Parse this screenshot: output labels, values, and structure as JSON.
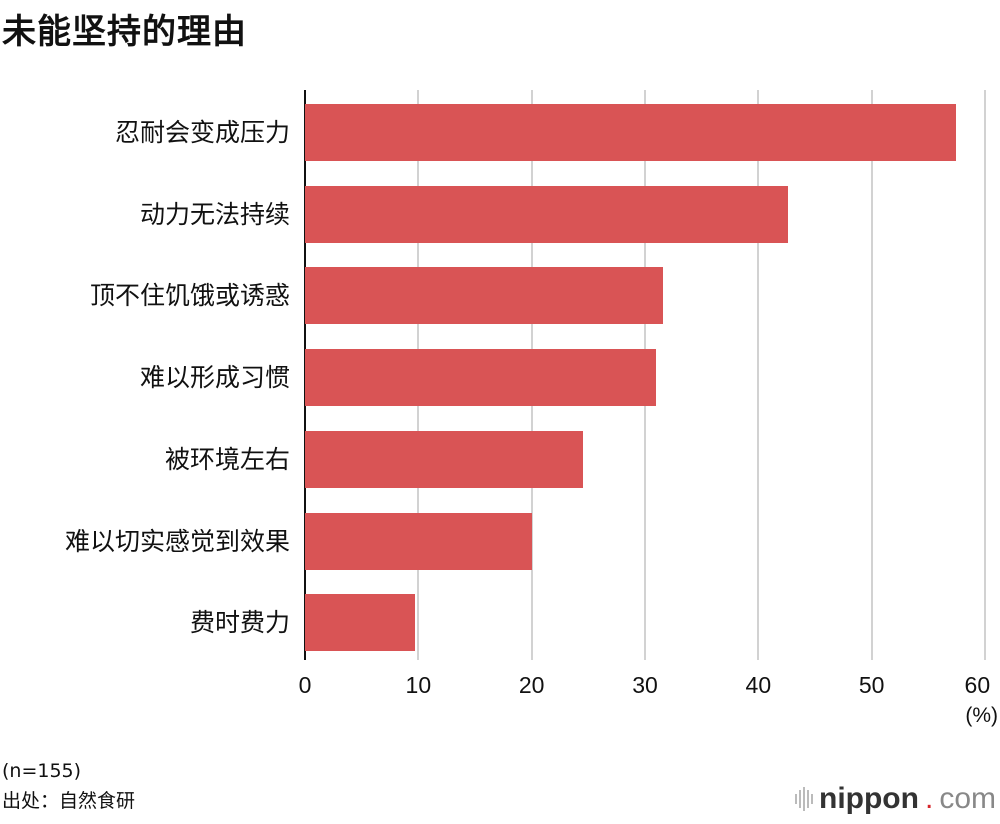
{
  "title": "未能坚持的理由",
  "chart_data": {
    "type": "bar",
    "orientation": "horizontal",
    "title": "未能坚持的理由",
    "categories": [
      "忍耐会变成压力",
      "动力无法持续",
      "顶不住饥饿或诱惑",
      "难以形成习惯",
      "被环境左右",
      "难以切实感觉到效果",
      "费时费力"
    ],
    "values": [
      57.4,
      42.6,
      31.6,
      31.0,
      24.5,
      20.0,
      9.7
    ],
    "xlabel": "(%)",
    "ylabel": "",
    "xlim": [
      0,
      60
    ],
    "xticks": [
      "0",
      "10",
      "20",
      "30",
      "40",
      "50",
      "60"
    ],
    "grid": true,
    "bar_color": "#d95455"
  },
  "axis": {
    "unit": "(%)"
  },
  "footer": {
    "sample": "(n=155)",
    "source": "出处：自然食研"
  },
  "logo": {
    "name": "nippon",
    "dot": ".",
    "tld": "com"
  }
}
